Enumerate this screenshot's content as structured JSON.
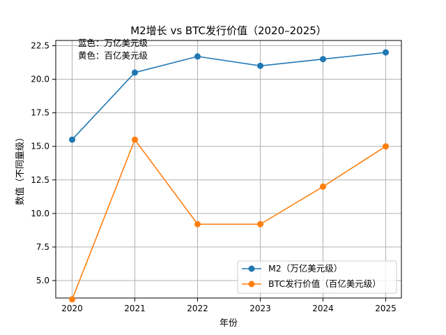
{
  "chart_data": {
    "type": "line",
    "title": "M2增长 vs BTC发行价值（2020–2025）",
    "xlabel": "年份",
    "ylabel": "数值（不同量级）",
    "categories": [
      2020,
      2021,
      2022,
      2023,
      2024,
      2025
    ],
    "ylim": [
      4.0,
      23.0
    ],
    "yticks": [
      5.0,
      7.5,
      10.0,
      12.5,
      15.0,
      17.5,
      20.0,
      22.5
    ],
    "grid": true,
    "legend_position": "lower-right",
    "annotations": [
      "蓝色：万亿美元级",
      "黄色：百亿美元级"
    ],
    "series": [
      {
        "name": "M2（万亿美元级）",
        "color": "#1f77b4",
        "values": [
          15.5,
          20.5,
          21.7,
          21.0,
          21.5,
          22.0
        ]
      },
      {
        "name": "BTC发行价值（百亿美元级）",
        "color": "#ff7f0e",
        "values": [
          3.6,
          15.5,
          9.2,
          9.2,
          12.0,
          15.0
        ]
      }
    ]
  }
}
